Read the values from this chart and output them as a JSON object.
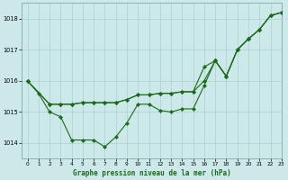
{
  "title": "Graphe pression niveau de la mer (hPa)",
  "bg_color": "#cce8e8",
  "grid_color": "#aad0d0",
  "line_color": "#1a6b1a",
  "xlim": [
    -0.5,
    23
  ],
  "ylim": [
    1013.5,
    1018.5
  ],
  "yticks": [
    1014,
    1015,
    1016,
    1017,
    1018
  ],
  "xticks": [
    0,
    1,
    2,
    3,
    4,
    5,
    6,
    7,
    8,
    9,
    10,
    11,
    12,
    13,
    14,
    15,
    16,
    17,
    18,
    19,
    20,
    21,
    22,
    23
  ],
  "series1_x": [
    0,
    1,
    2,
    3,
    4,
    5,
    6,
    7,
    8,
    9,
    10,
    11,
    12,
    13,
    14,
    15,
    16,
    17,
    18,
    19,
    20,
    21,
    22,
    23
  ],
  "series1_y": [
    1016.0,
    1015.6,
    1015.0,
    1014.85,
    1014.1,
    1014.1,
    1014.1,
    1013.88,
    1014.2,
    1014.65,
    1015.25,
    1015.25,
    1015.05,
    1015.0,
    1015.1,
    1015.1,
    1015.85,
    1016.65,
    1016.15,
    1017.0,
    1017.35,
    1017.65,
    1018.1,
    1018.2
  ],
  "series2_x": [
    0,
    2,
    3,
    4,
    5,
    6,
    7,
    8,
    9,
    10,
    11,
    12,
    13,
    14,
    15,
    16,
    17,
    18,
    19,
    20,
    21,
    22,
    23
  ],
  "series2_y": [
    1016.0,
    1015.25,
    1015.25,
    1015.25,
    1015.3,
    1015.3,
    1015.3,
    1015.3,
    1015.4,
    1015.55,
    1015.55,
    1015.6,
    1015.6,
    1015.65,
    1015.65,
    1016.45,
    1016.65,
    1016.15,
    1017.0,
    1017.35,
    1017.65,
    1018.1,
    1018.2
  ],
  "series3_x": [
    0,
    2,
    3,
    4,
    5,
    6,
    7,
    8,
    9,
    10,
    11,
    12,
    13,
    14,
    15,
    16,
    17,
    18,
    19,
    20,
    21,
    22,
    23
  ],
  "series3_y": [
    1016.0,
    1015.25,
    1015.25,
    1015.25,
    1015.3,
    1015.3,
    1015.3,
    1015.3,
    1015.4,
    1015.55,
    1015.55,
    1015.6,
    1015.6,
    1015.65,
    1015.65,
    1016.0,
    1016.65,
    1016.15,
    1017.0,
    1017.35,
    1017.65,
    1018.1,
    1018.2
  ]
}
